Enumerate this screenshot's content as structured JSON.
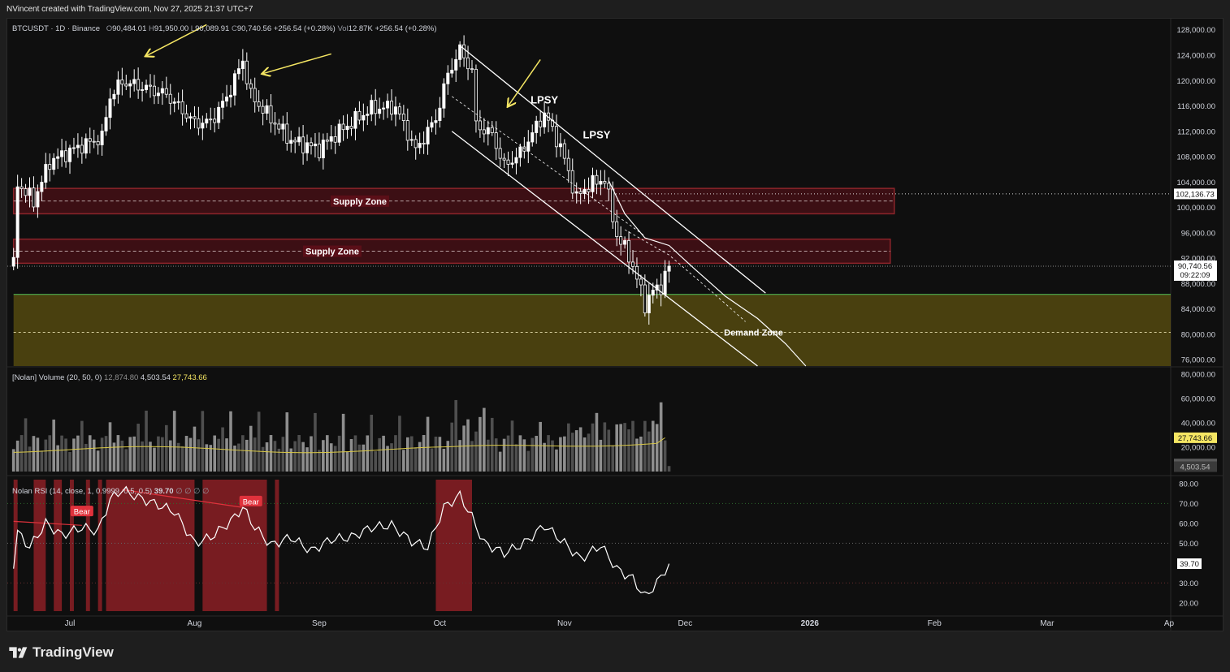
{
  "credit": "NVincent created with TradingView.com, Nov 27, 2025 21:37 UTC+7",
  "legend": {
    "symbol": "BTCUSDT · 1D · Binance",
    "open_k": "O",
    "open": "90,484.01",
    "high_k": "H",
    "high": "91,950.00",
    "low_k": "L",
    "low": "90,089.91",
    "close_k": "C",
    "close": "90,740.56",
    "change": "+256.54 (+0.28%)",
    "vol_k": "Vol",
    "vol": "12.87K",
    "change2": "+256.54 (+0.28%)"
  },
  "volume_legend": {
    "title": "[Nolan] Volume (20, 50, 0)",
    "v1": "12,874.80",
    "v2": "4,503.54",
    "v3": "27,743.66"
  },
  "rsi_legend": {
    "title": "Nolan RSI (14, close, 1, 0.9999, 0.5, 0.5)",
    "value": "39.70",
    "extra": "∅ ∅ ∅ ∅"
  },
  "footer": {
    "brand": "TradingView",
    "logo_icon": "tradingview-logo-icon"
  },
  "colors": {
    "bg": "#0f0f0f",
    "up": "#ffffff",
    "down": "#ffffff",
    "supply": "#e0323c",
    "demand": "#7a6a10",
    "demand_line": "#4caf50",
    "rsi_bear": "#8b1e24",
    "annot": "#f5e663"
  },
  "chart_data": [
    {
      "type": "candlestick",
      "pane": "price",
      "title": "",
      "x_labels": [
        "Jul",
        "Aug",
        "Sep",
        "Oct",
        "Nov",
        "Dec",
        "2026",
        "Feb",
        "Mar",
        "Ap"
      ],
      "y_ticks": [
        "128,000.00",
        "124,000.00",
        "120,000.00",
        "116,000.00",
        "112,000.00",
        "108,000.00",
        "104,000.00",
        "100,000.00",
        "96,000.00",
        "92,000.00",
        "88,000.00",
        "84,000.00",
        "80,000.00",
        "76,000.00"
      ],
      "ylim": [
        75000,
        129500
      ],
      "price_labels": [
        {
          "value": "102,136.73",
          "price": 102136.73
        },
        {
          "value": "90,740.56",
          "time": "09:22:09",
          "price": 90740.56
        }
      ],
      "close_series": [
        {
          "x": "2025-06-17",
          "y": 104500
        },
        {
          "x": "2025-06-22",
          "y": 101000
        },
        {
          "x": "2025-06-26",
          "y": 107200
        },
        {
          "x": "2025-07-03",
          "y": 109500
        },
        {
          "x": "2025-07-09",
          "y": 111000
        },
        {
          "x": "2025-07-11",
          "y": 117500
        },
        {
          "x": "2025-07-14",
          "y": 119800
        },
        {
          "x": "2025-07-20",
          "y": 118800
        },
        {
          "x": "2025-07-25",
          "y": 117800
        },
        {
          "x": "2025-08-01",
          "y": 113300
        },
        {
          "x": "2025-08-05",
          "y": 113500
        },
        {
          "x": "2025-08-09",
          "y": 117300
        },
        {
          "x": "2025-08-13",
          "y": 123200
        },
        {
          "x": "2025-08-15",
          "y": 117600
        },
        {
          "x": "2025-08-20",
          "y": 114000
        },
        {
          "x": "2025-08-25",
          "y": 110500
        },
        {
          "x": "2025-09-01",
          "y": 109200
        },
        {
          "x": "2025-09-05",
          "y": 111500
        },
        {
          "x": "2025-09-10",
          "y": 113800
        },
        {
          "x": "2025-09-14",
          "y": 115600
        },
        {
          "x": "2025-09-20",
          "y": 115800
        },
        {
          "x": "2025-09-25",
          "y": 109000
        },
        {
          "x": "2025-09-30",
          "y": 114000
        },
        {
          "x": "2025-10-03",
          "y": 121000
        },
        {
          "x": "2025-10-06",
          "y": 124800
        },
        {
          "x": "2025-10-09",
          "y": 121500
        },
        {
          "x": "2025-10-10",
          "y": 113000
        },
        {
          "x": "2025-10-14",
          "y": 111500
        },
        {
          "x": "2025-10-17",
          "y": 106500
        },
        {
          "x": "2025-10-21",
          "y": 108500
        },
        {
          "x": "2025-10-27",
          "y": 114800
        },
        {
          "x": "2025-10-31",
          "y": 109500
        },
        {
          "x": "2025-11-04",
          "y": 101500
        },
        {
          "x": "2025-11-07",
          "y": 103500
        },
        {
          "x": "2025-11-11",
          "y": 104500
        },
        {
          "x": "2025-11-14",
          "y": 95500
        },
        {
          "x": "2025-11-17",
          "y": 92500
        },
        {
          "x": "2025-11-20",
          "y": 86800
        },
        {
          "x": "2025-11-21",
          "y": 84700
        },
        {
          "x": "2025-11-23",
          "y": 86800
        },
        {
          "x": "2025-11-25",
          "y": 87600
        },
        {
          "x": "2025-11-27",
          "y": 90740
        }
      ],
      "zones": [
        {
          "label": "Supply Zone",
          "top": 103000,
          "bottom": 99000,
          "mid": 101000,
          "from": "2025-06-17",
          "to": "2026-01-22"
        },
        {
          "label": "Supply Zone",
          "top": 95000,
          "bottom": 91200,
          "mid": 93100,
          "from": "2025-06-17",
          "to": "2026-01-21"
        },
        {
          "label": "Demand Zone",
          "top": 86300,
          "bottom": 75000,
          "mid": 80300,
          "from": "2025-06-17",
          "to": "2026-04-01"
        }
      ],
      "annotations": [
        {
          "text": "LPSY",
          "x": "2025-10-27",
          "y": 117000
        },
        {
          "text": "LPSY",
          "x": "2025-11-09",
          "y": 111500
        }
      ]
    },
    {
      "type": "bar",
      "pane": "volume",
      "y_ticks": [
        "80,000.00",
        "60,000.00",
        "40,000.00",
        "20,000.00"
      ],
      "ylim": [
        0,
        80000
      ],
      "value_labels": [
        "27,743.66",
        "12,874.80",
        "4,503.54"
      ],
      "moving_average": 27743.66
    },
    {
      "type": "line",
      "pane": "rsi",
      "y_ticks": [
        "80.00",
        "70.00",
        "60.00",
        "50.00",
        "30.00",
        "20.00"
      ],
      "ylim": [
        15,
        82
      ],
      "value_label": "39.70",
      "points": [
        {
          "x": "2025-06-17",
          "y": 58
        },
        {
          "x": "2025-06-21",
          "y": 48
        },
        {
          "x": "2025-06-25",
          "y": 60
        },
        {
          "x": "2025-06-29",
          "y": 54
        },
        {
          "x": "2025-07-04",
          "y": 58
        },
        {
          "x": "2025-07-08",
          "y": 56
        },
        {
          "x": "2025-07-11",
          "y": 72
        },
        {
          "x": "2025-07-14",
          "y": 77
        },
        {
          "x": "2025-07-18",
          "y": 73
        },
        {
          "x": "2025-07-22",
          "y": 70
        },
        {
          "x": "2025-07-27",
          "y": 66
        },
        {
          "x": "2025-08-01",
          "y": 50
        },
        {
          "x": "2025-08-05",
          "y": 53
        },
        {
          "x": "2025-08-10",
          "y": 61
        },
        {
          "x": "2025-08-13",
          "y": 68
        },
        {
          "x": "2025-08-16",
          "y": 58
        },
        {
          "x": "2025-08-20",
          "y": 49
        },
        {
          "x": "2025-08-25",
          "y": 53
        },
        {
          "x": "2025-08-30",
          "y": 46
        },
        {
          "x": "2025-09-04",
          "y": 52
        },
        {
          "x": "2025-09-09",
          "y": 53
        },
        {
          "x": "2025-09-14",
          "y": 58
        },
        {
          "x": "2025-09-19",
          "y": 59
        },
        {
          "x": "2025-09-24",
          "y": 51
        },
        {
          "x": "2025-09-28",
          "y": 48
        },
        {
          "x": "2025-10-02",
          "y": 68
        },
        {
          "x": "2025-10-06",
          "y": 74
        },
        {
          "x": "2025-10-09",
          "y": 63
        },
        {
          "x": "2025-10-12",
          "y": 50
        },
        {
          "x": "2025-10-17",
          "y": 45
        },
        {
          "x": "2025-10-22",
          "y": 50
        },
        {
          "x": "2025-10-27",
          "y": 59
        },
        {
          "x": "2025-11-01",
          "y": 50
        },
        {
          "x": "2025-11-05",
          "y": 42
        },
        {
          "x": "2025-11-10",
          "y": 49
        },
        {
          "x": "2025-11-14",
          "y": 37
        },
        {
          "x": "2025-11-18",
          "y": 32
        },
        {
          "x": "2025-11-21",
          "y": 23
        },
        {
          "x": "2025-11-24",
          "y": 30
        },
        {
          "x": "2025-11-27",
          "y": 39.7
        }
      ],
      "bear_labels": [
        {
          "text": "Bear",
          "x": "2025-07-04",
          "y": 66
        },
        {
          "text": "Bear",
          "x": "2025-08-15",
          "y": 71
        }
      ],
      "bear_regions": [
        {
          "from": "2025-06-17",
          "to": "2025-06-18"
        },
        {
          "from": "2025-06-22",
          "to": "2025-06-25"
        },
        {
          "from": "2025-06-27",
          "to": "2025-06-29"
        },
        {
          "from": "2025-07-01",
          "to": "2025-07-02"
        },
        {
          "from": "2025-07-05",
          "to": "2025-07-06"
        },
        {
          "from": "2025-07-08",
          "to": "2025-07-09"
        },
        {
          "from": "2025-07-10",
          "to": "2025-08-01"
        },
        {
          "from": "2025-08-03",
          "to": "2025-08-19"
        },
        {
          "from": "2025-08-21",
          "to": "2025-08-22"
        },
        {
          "from": "2025-09-30",
          "to": "2025-10-09"
        }
      ]
    }
  ]
}
